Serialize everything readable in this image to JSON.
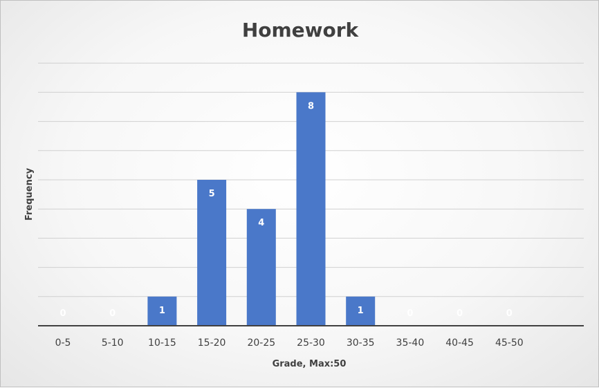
{
  "chart_data": {
    "type": "bar",
    "title": "Homework",
    "xlabel": "Grade, Max:50",
    "ylabel": "Frequency",
    "categories": [
      "0-5",
      "5-10",
      "10-15",
      "15-20",
      "20-25",
      "25-30",
      "30-35",
      "35-40",
      "40-45",
      "45-50"
    ],
    "values": [
      0,
      0,
      1,
      5,
      4,
      8,
      1,
      0,
      0,
      0
    ],
    "ylim": [
      0,
      9
    ],
    "grid": true,
    "legend": "none",
    "data_labels": true,
    "bar_color": "#4a78c9"
  }
}
